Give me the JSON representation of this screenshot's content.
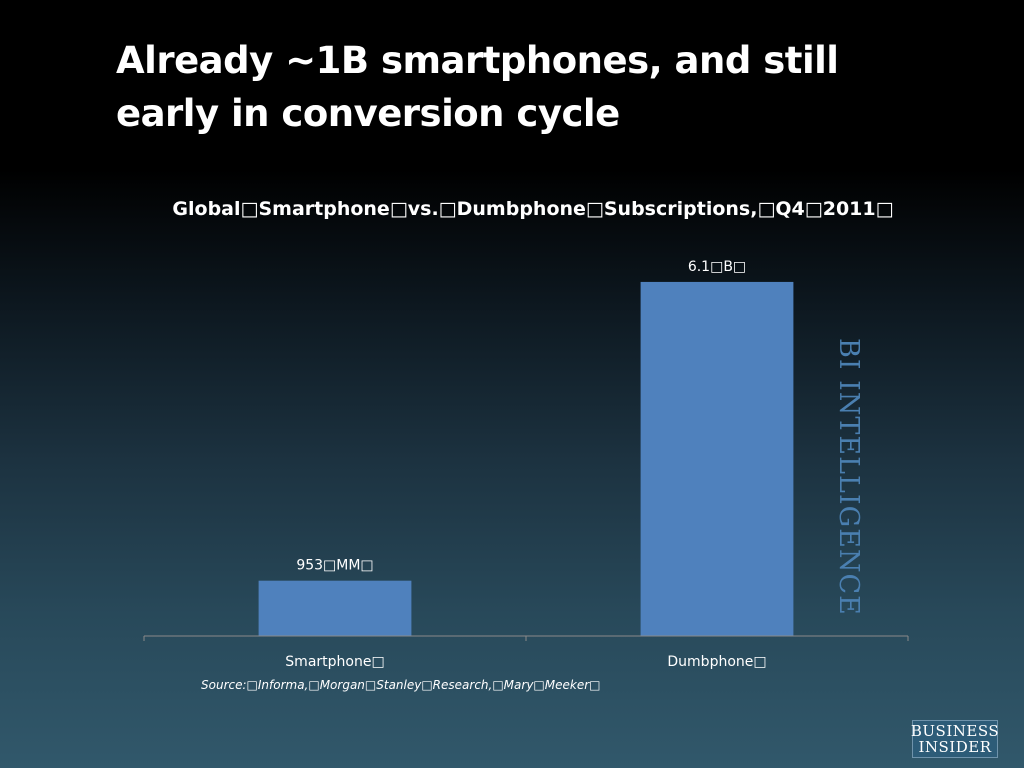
{
  "slide": {
    "title": "Already ~1B smartphones, and still early in conversion cycle"
  },
  "chart_data": {
    "type": "bar",
    "title": "Global□Smartphone□vs.□Dumbphone□Subscriptions,□Q4□2011□",
    "categories": [
      "Smartphone□",
      "Dumbphone□"
    ],
    "values": [
      953,
      6100
    ],
    "data_labels": [
      "953□MM□",
      "6.1□B□"
    ],
    "ylim": [
      0,
      6650
    ],
    "xlabel": "",
    "ylabel": "",
    "grid": false,
    "bar_color": "#4f81bd",
    "source": "Source:□Informa,□Morgan□Stanley□Research,□Mary□Meeker□"
  },
  "watermark": {
    "text": "BI INTELLIGENCE"
  },
  "logo": {
    "line1": "BUSINESS",
    "line2": "INSIDER"
  }
}
